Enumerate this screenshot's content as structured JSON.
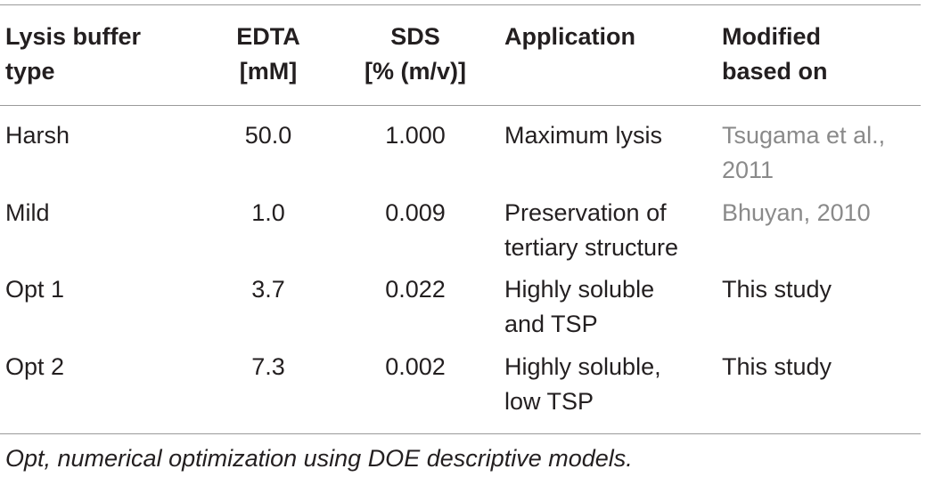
{
  "table": {
    "headers": {
      "type": "Lysis buffer\ntype",
      "edta": "EDTA\n[mM]",
      "sds": "SDS\n[% (m/v)]",
      "application": "Application",
      "reference": "Modified\nbased on"
    },
    "rows": [
      {
        "type": "Harsh",
        "edta": "50.0",
        "sds": "1.000",
        "application": "Maximum lysis",
        "reference": "Tsugama et al.,\n2011",
        "reference_is_citation": true
      },
      {
        "type": "Mild",
        "edta": "1.0",
        "sds": "0.009",
        "application": "Preservation of\ntertiary structure",
        "reference": "Bhuyan, 2010",
        "reference_is_citation": true
      },
      {
        "type": "Opt 1",
        "edta": "3.7",
        "sds": "0.022",
        "application": "Highly soluble\nand TSP",
        "reference": "This study",
        "reference_is_citation": false
      },
      {
        "type": "Opt 2",
        "edta": "7.3",
        "sds": "0.002",
        "application": "Highly soluble,\nlow TSP",
        "reference": "This study",
        "reference_is_citation": false
      }
    ]
  },
  "footnote": "Opt, numerical optimization using DOE descriptive models.",
  "colors": {
    "text": "#231f20",
    "citation": "#8a8a8a",
    "rule": "#9a9a9a"
  }
}
